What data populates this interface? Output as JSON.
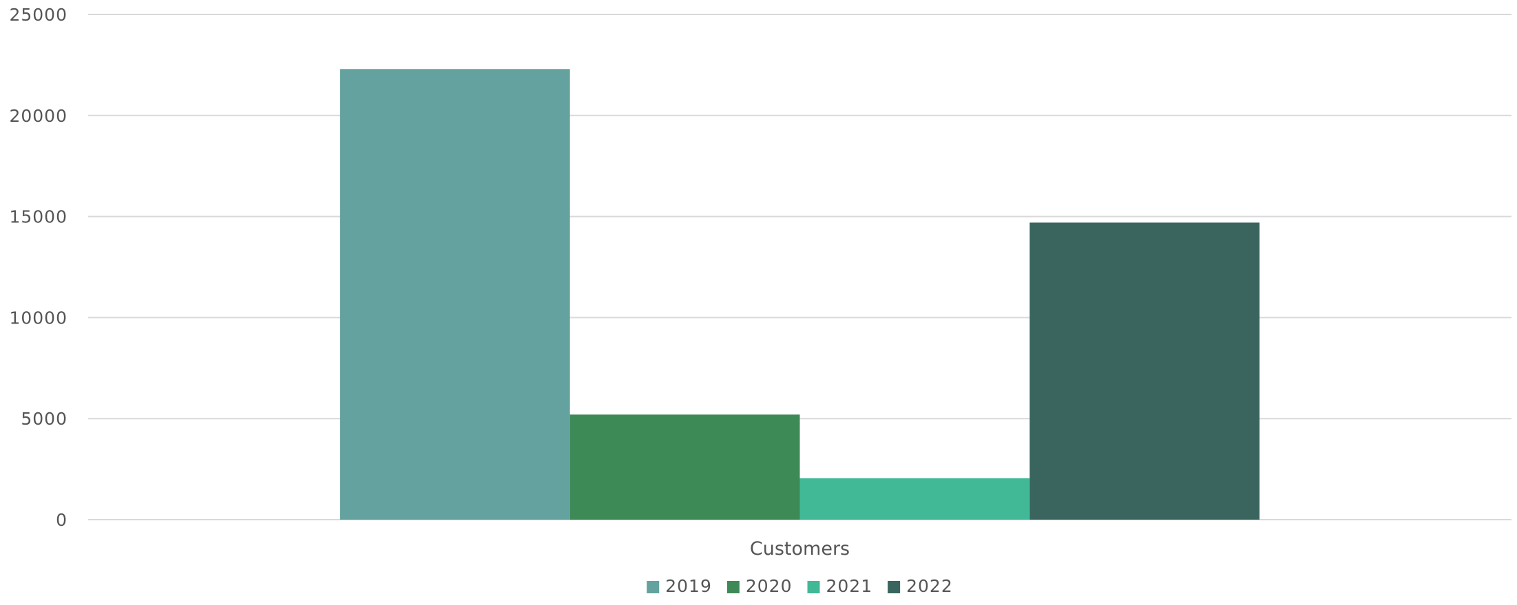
{
  "chart_data": {
    "type": "bar",
    "categories": [
      "Customers"
    ],
    "series": [
      {
        "name": "2019",
        "values": [
          22300
        ],
        "color": "#63a29e"
      },
      {
        "name": "2020",
        "values": [
          5200
        ],
        "color": "#3e8a57"
      },
      {
        "name": "2021",
        "values": [
          2050
        ],
        "color": "#41b896"
      },
      {
        "name": "2022",
        "values": [
          14700
        ],
        "color": "#3a655f"
      }
    ],
    "ylim": [
      0,
      25000
    ],
    "yticks": [
      "0",
      "5000",
      "10000",
      "15000",
      "20000",
      "25000"
    ],
    "grid": true,
    "legend": "bottom-center",
    "title": "",
    "xlabel": "",
    "ylabel": ""
  }
}
